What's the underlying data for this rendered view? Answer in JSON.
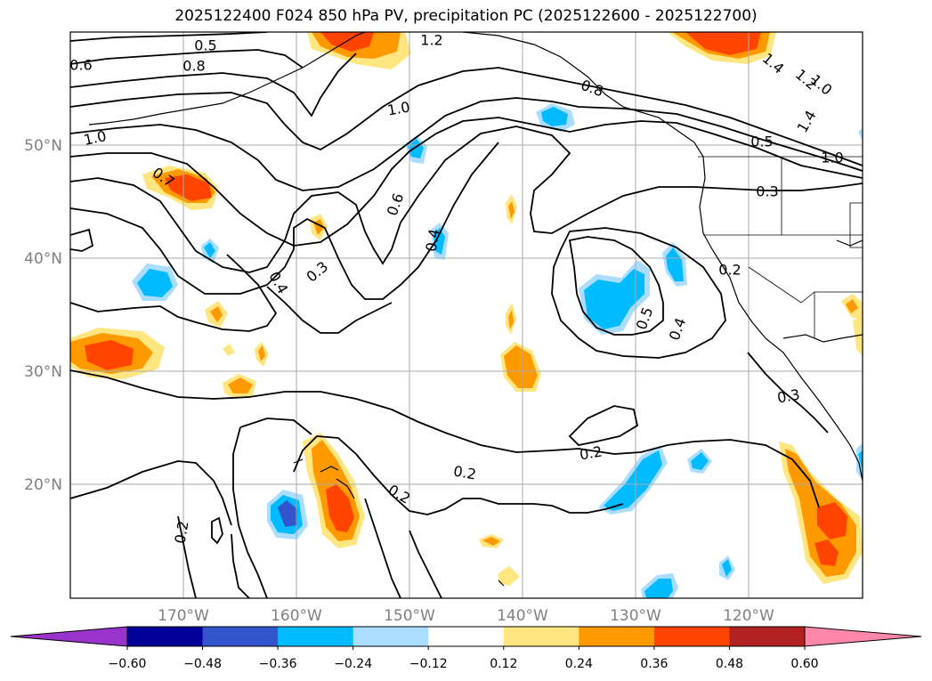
{
  "title": "2025122400 F024 850 hPa PV, precipitation PC (2025122600 - 2025122700)",
  "lat_labels": [
    "50°N",
    "40°N",
    "30°N",
    "20°N"
  ],
  "lon_labels": [
    "170°W",
    "160°W",
    "150°W",
    "140°W",
    "130°W",
    "120°W"
  ],
  "contour_labels": [
    "0.5",
    "1.2",
    "0.6",
    "0.8",
    "1.0",
    "1.0",
    "0.7",
    "0.8",
    "1.4",
    "1.2",
    "1.0",
    "1.4",
    "0.5",
    "1.0",
    "0.6",
    "0.4",
    "0.3",
    "0.4",
    "0.3",
    "0.2",
    "0.5",
    "0.4",
    "0.3",
    "0.2",
    "0.2",
    "0.2",
    "0.2"
  ],
  "colorbar": {
    "ticks": [
      "−0.60",
      "−0.48",
      "−0.36",
      "−0.24",
      "−0.12",
      "0.12",
      "0.24",
      "0.36",
      "0.48",
      "0.60"
    ],
    "colors": [
      "#9933cc",
      "#000099",
      "#3355cc",
      "#00bbff",
      "#aaddff",
      "#ffffff",
      "#ffe680",
      "#ff9900",
      "#ff4400",
      "#b22222",
      "#ff88aa"
    ]
  }
}
